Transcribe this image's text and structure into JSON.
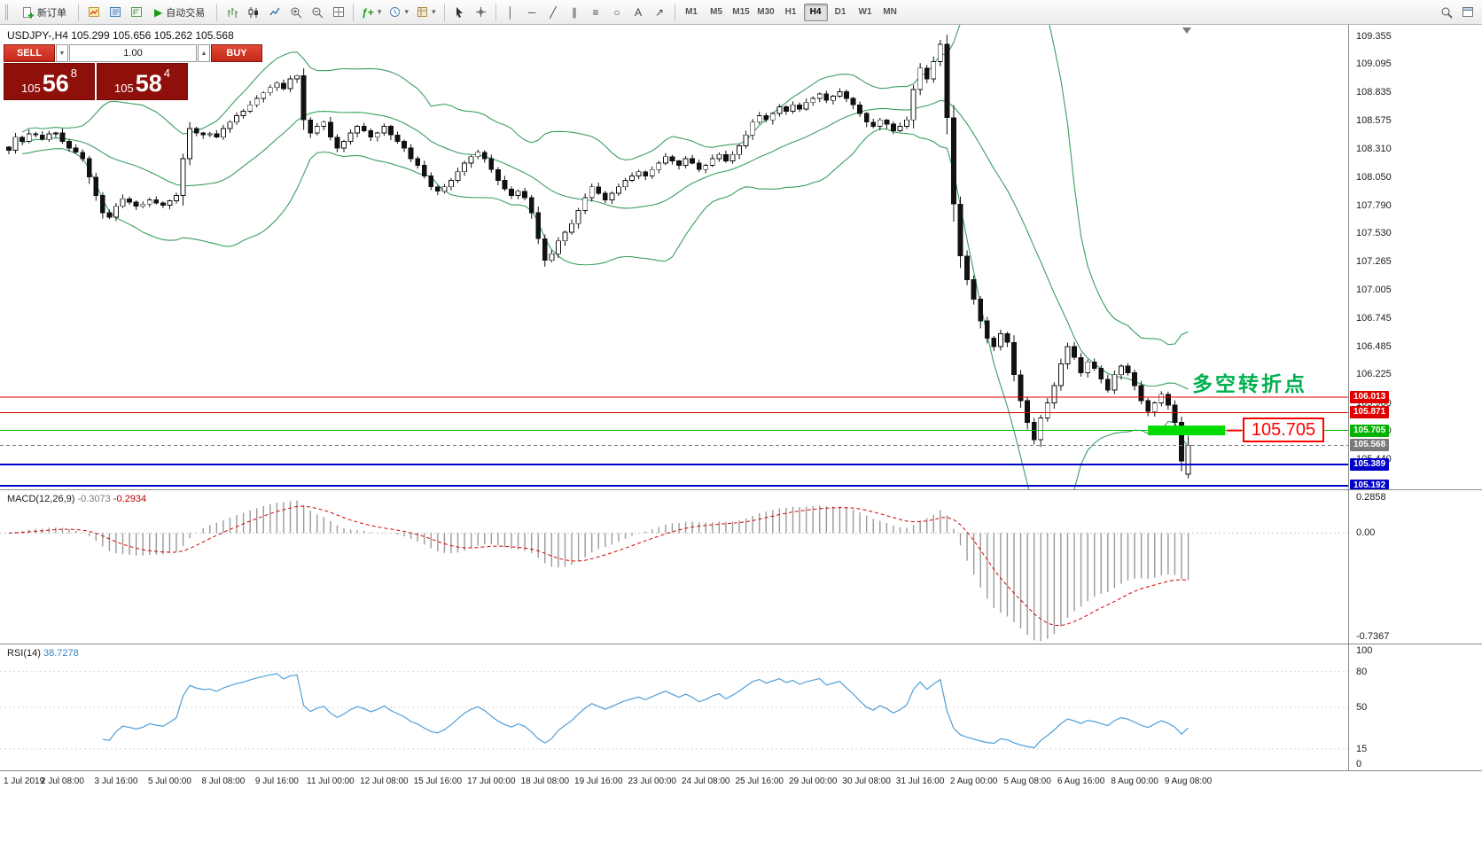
{
  "toolbar": {
    "new_order_label": "新订单",
    "autotrading_label": "自动交易",
    "timeframes": [
      {
        "label": "M1",
        "active": false
      },
      {
        "label": "M5",
        "active": false
      },
      {
        "label": "M15",
        "active": false
      },
      {
        "label": "M30",
        "active": false
      },
      {
        "label": "H1",
        "active": false
      },
      {
        "label": "H4",
        "active": true
      },
      {
        "label": "D1",
        "active": false
      },
      {
        "label": "W1",
        "active": false
      },
      {
        "label": "MN",
        "active": false
      }
    ]
  },
  "icons": {
    "play": "▶",
    "spin_up": "▲",
    "spin_down": "▼",
    "dropdown": "▾",
    "vline": "│",
    "hline": "─",
    "trendline": "╱",
    "channel": "∥",
    "fibonacci": "≡",
    "ellipse": "○",
    "text_tool": "A",
    "arrow_tool": "↗",
    "indicators": "ƒ+",
    "crosshair": "+"
  },
  "chart": {
    "info_line": "USDJPY-,H4  105.299 105.656 105.262 105.568",
    "annotation": "多空转折点",
    "annotation_color": "#00b050",
    "callout_price": "105.705",
    "band_color": "#3a9e5f",
    "up_color": "#ffffff",
    "down_color": "#111111"
  },
  "trade_panel": {
    "sell_label": "SELL",
    "buy_label": "BUY",
    "volume": "1.00",
    "sell_big": "105",
    "sell_pips": "56",
    "sell_frac": "8",
    "buy_big": "105",
    "buy_pips": "58",
    "buy_frac": "4"
  },
  "y_axis": {
    "labels": [
      "109.355",
      "109.095",
      "108.835",
      "108.575",
      "108.310",
      "108.050",
      "107.790",
      "107.530",
      "107.265",
      "107.005",
      "106.745",
      "106.485",
      "106.225",
      "105.960",
      "105.700",
      "105.440"
    ]
  },
  "levels": [
    {
      "price": 106.013,
      "label": "106.013",
      "color": "#e00000",
      "width": 1,
      "style": "solid"
    },
    {
      "price": 105.871,
      "label": "105.871",
      "color": "#e00000",
      "width": 1,
      "style": "solid"
    },
    {
      "price": 105.705,
      "label": "105.705",
      "color": "#00b300",
      "width": 1,
      "style": "solid"
    },
    {
      "price": 105.568,
      "label": "105.568",
      "color": "#7a7a7a",
      "width": 1,
      "style": "dashed"
    },
    {
      "price": 105.389,
      "label": "105.389",
      "color": "#0000c8",
      "width": 2,
      "style": "solid"
    },
    {
      "price": 105.192,
      "label": "105.192",
      "color": "#0000c8",
      "width": 2,
      "style": "solid"
    }
  ],
  "highlight": {
    "price": 105.705,
    "from_bar": 170,
    "to_bar": 181.5,
    "color": "#00dc00",
    "thickness": 11
  },
  "chart_data": {
    "type": "candlestick",
    "symbol": "USDJPY-",
    "timeframe": "H4",
    "y_range": {
      "max": 109.46,
      "min": 105.16
    },
    "bollinger": {
      "period": 20,
      "deviation": 2
    },
    "closes": [
      108.3,
      108.42,
      108.38,
      108.45,
      108.44,
      108.4,
      108.45,
      108.46,
      108.38,
      108.32,
      108.28,
      108.22,
      108.05,
      107.88,
      107.72,
      107.68,
      107.78,
      107.85,
      107.82,
      107.78,
      107.8,
      107.84,
      107.81,
      107.79,
      107.83,
      107.88,
      108.22,
      108.5,
      108.46,
      108.44,
      108.45,
      108.42,
      108.5,
      108.56,
      108.62,
      108.66,
      108.72,
      108.78,
      108.83,
      108.88,
      108.92,
      108.87,
      108.96,
      108.99,
      108.58,
      108.46,
      108.52,
      108.56,
      108.42,
      108.32,
      108.38,
      108.46,
      108.52,
      108.48,
      108.42,
      108.46,
      108.52,
      108.44,
      108.38,
      108.32,
      108.22,
      108.16,
      108.06,
      107.96,
      107.92,
      107.96,
      108.02,
      108.1,
      108.18,
      108.24,
      108.28,
      108.22,
      108.12,
      108.02,
      107.94,
      107.88,
      107.92,
      107.86,
      107.72,
      107.48,
      107.28,
      107.34,
      107.46,
      107.54,
      107.62,
      107.74,
      107.86,
      107.96,
      107.9,
      107.84,
      107.9,
      107.96,
      108.02,
      108.06,
      108.1,
      108.06,
      108.12,
      108.18,
      108.24,
      108.2,
      108.16,
      108.22,
      108.18,
      108.12,
      108.16,
      108.22,
      108.26,
      108.2,
      108.26,
      108.34,
      108.44,
      108.56,
      108.62,
      108.58,
      108.64,
      108.7,
      108.66,
      108.72,
      108.68,
      108.74,
      108.78,
      108.82,
      108.76,
      108.8,
      108.84,
      108.78,
      108.72,
      108.64,
      108.56,
      108.52,
      108.58,
      108.54,
      108.48,
      108.52,
      108.58,
      108.86,
      109.06,
      108.96,
      109.12,
      109.28,
      108.6,
      107.8,
      107.32,
      107.1,
      106.92,
      106.72,
      106.56,
      106.48,
      106.6,
      106.52,
      106.22,
      105.98,
      105.78,
      105.62,
      105.82,
      105.96,
      106.12,
      106.32,
      106.48,
      106.38,
      106.24,
      106.34,
      106.28,
      106.18,
      106.08,
      106.22,
      106.3,
      106.24,
      106.12,
      105.98,
      105.88,
      105.96,
      106.04,
      105.94,
      105.78,
      105.42,
      105.568
    ],
    "last_bar": {
      "open": 105.299,
      "high": 105.656,
      "low": 105.262,
      "close": 105.568
    },
    "x_labels": [
      {
        "text": "1 Jul 2019",
        "bar": 0
      },
      {
        "text": "2 Jul 08:00",
        "bar": 8
      },
      {
        "text": "3 Jul 16:00",
        "bar": 16
      },
      {
        "text": "5 Jul 00:00",
        "bar": 24
      },
      {
        "text": "8 Jul 08:00",
        "bar": 32
      },
      {
        "text": "9 Jul 16:00",
        "bar": 40
      },
      {
        "text": "11 Jul 00:00",
        "bar": 48
      },
      {
        "text": "12 Jul 08:00",
        "bar": 56
      },
      {
        "text": "15 Jul 16:00",
        "bar": 64
      },
      {
        "text": "17 Jul 00:00",
        "bar": 72
      },
      {
        "text": "18 Jul 08:00",
        "bar": 80
      },
      {
        "text": "19 Jul 16:00",
        "bar": 88
      },
      {
        "text": "23 Jul 00:00",
        "bar": 96
      },
      {
        "text": "24 Jul 08:00",
        "bar": 104
      },
      {
        "text": "25 Jul 16:00",
        "bar": 112
      },
      {
        "text": "29 Jul 00:00",
        "bar": 120
      },
      {
        "text": "30 Jul 08:00",
        "bar": 128
      },
      {
        "text": "31 Jul 16:00",
        "bar": 136
      },
      {
        "text": "2 Aug 00:00",
        "bar": 144
      },
      {
        "text": "5 Aug 08:00",
        "bar": 152
      },
      {
        "text": "6 Aug 16:00",
        "bar": 160
      },
      {
        "text": "8 Aug 00:00",
        "bar": 168
      },
      {
        "text": "9 Aug 08:00",
        "bar": 176
      }
    ]
  },
  "macd": {
    "name": "MACD(12,26,9)",
    "value_main": "-0.3073",
    "value_signal": "-0.2934",
    "max": 0.2858,
    "min": -0.7367,
    "histogram_color": "#9a9a9a",
    "signal_color": "#d40000",
    "axis": [
      {
        "text": "0.2858",
        "value": 0.2858
      },
      {
        "text": "0.00",
        "value": 0
      },
      {
        "text": "-0.7367",
        "value": -0.7367
      }
    ]
  },
  "rsi": {
    "name": "RSI(14)",
    "value": "38.7278",
    "period": 14,
    "line_color": "#4f9fd9",
    "levels": [
      80,
      50,
      15
    ],
    "axis": [
      {
        "text": "100",
        "value": 100
      },
      {
        "text": "80",
        "value": 80
      },
      {
        "text": "50",
        "value": 50
      },
      {
        "text": "15",
        "value": 15
      },
      {
        "text": "0",
        "value": 0
      }
    ]
  }
}
